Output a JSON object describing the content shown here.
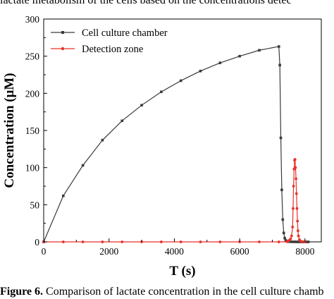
{
  "captions": {
    "top": "lactate metabolism of the cells based on the concentrations detec",
    "bottom_bold": "Figure 6.",
    "bottom_rest": " Comparison of lactate concentration in the cell culture chamb"
  },
  "chart_data": {
    "type": "line",
    "xlabel": "T (s)",
    "ylabel": "Concentration (μM)",
    "xlim": [
      0,
      8500
    ],
    "ylim": [
      0,
      300
    ],
    "xticks": [
      0,
      2000,
      4000,
      6000,
      8000
    ],
    "yticks": [
      0,
      50,
      100,
      150,
      200,
      250,
      300
    ],
    "minor_ticks": true,
    "grid": false,
    "legend_position": "top-left",
    "series": [
      {
        "name": "Cell culture chamber",
        "color": "#3a3a3a",
        "marker": "square",
        "x": [
          0,
          600,
          1200,
          1800,
          2400,
          3000,
          3600,
          4200,
          4800,
          5400,
          6000,
          6600,
          7200,
          7230,
          7260,
          7290,
          7320,
          7350,
          7380,
          7410,
          7440,
          7470,
          7500,
          7560,
          7620,
          7680,
          7740,
          7800,
          7860,
          7920,
          7980,
          8040,
          8100
        ],
        "y": [
          0,
          62,
          103,
          137,
          163,
          184,
          202,
          217,
          230,
          241,
          250,
          258,
          263,
          238,
          140,
          70,
          30,
          12,
          5,
          2,
          1,
          0.5,
          0.3,
          0.2,
          0.1,
          0.1,
          0,
          0,
          0,
          0,
          0,
          0,
          0
        ]
      },
      {
        "name": "Detection zone",
        "color": "#e8302a",
        "marker": "circle",
        "x": [
          0,
          600,
          1200,
          1800,
          2400,
          3000,
          3600,
          4200,
          4800,
          5400,
          6000,
          6600,
          7200,
          7440,
          7470,
          7500,
          7530,
          7560,
          7590,
          7620,
          7635,
          7650,
          7665,
          7680,
          7695,
          7710,
          7725,
          7740,
          7755,
          7770,
          7785,
          7800,
          7830,
          7860,
          7920,
          8000
        ],
        "y": [
          0,
          0,
          0,
          0,
          0,
          0,
          0,
          0,
          0,
          0,
          0,
          0,
          0,
          0.3,
          0.8,
          1.5,
          2.5,
          4,
          8,
          20,
          45,
          75,
          98,
          110,
          111,
          100,
          85,
          65,
          45,
          28,
          15,
          8,
          3,
          1,
          0.3,
          0
        ]
      }
    ]
  }
}
